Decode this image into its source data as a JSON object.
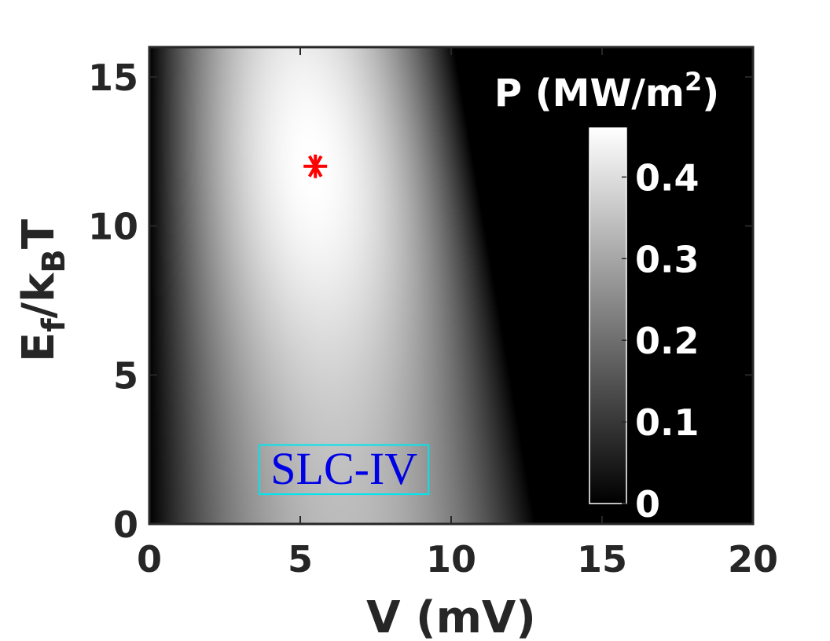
{
  "chart_data": {
    "type": "heatmap",
    "title": "",
    "xlabel": "V (mV)",
    "ylabel": {
      "main": "E",
      "sub1": "f",
      "mid": "/k",
      "sub2": "B",
      "tail": "T"
    },
    "xlim": [
      0,
      20
    ],
    "ylim": [
      0,
      16
    ],
    "xticks": [
      0,
      5,
      10,
      15,
      20
    ],
    "yticks": [
      0,
      5,
      10,
      15
    ],
    "xtick_labels": [
      "0",
      "5",
      "10",
      "15",
      "20"
    ],
    "ytick_labels": [
      "0",
      "5",
      "10",
      "15"
    ],
    "colormap": "gray",
    "colorbar": {
      "title": {
        "main": "P (MW/m",
        "sup": "2",
        "tail": ")"
      },
      "range": [
        0,
        0.46
      ],
      "ticks": [
        0,
        0.1,
        0.2,
        0.3,
        0.4
      ],
      "tick_labels": [
        "0",
        "0.1",
        "0.2",
        "0.3",
        "0.4"
      ],
      "placement": "inside upper-right"
    },
    "field_model": {
      "description": "power density vs bias voltage and Fermi level",
      "peak_value": 0.46,
      "zero_bias_value": 0.0,
      "cutoff_voltage_at_y0": 12.8,
      "cutoff_voltage_at_y16": 10.1
    },
    "marker": {
      "x": 5.5,
      "y": 12,
      "symbol": "asterisk",
      "color": "#ff0000"
    },
    "annotation": {
      "text": "SLC-IV",
      "x_range": [
        3.65,
        9.25
      ],
      "y_range": [
        1.0,
        2.65
      ],
      "text_color": "#0000e6",
      "box_color": "#00e5ee"
    },
    "background": "#000000",
    "grid": false
  }
}
